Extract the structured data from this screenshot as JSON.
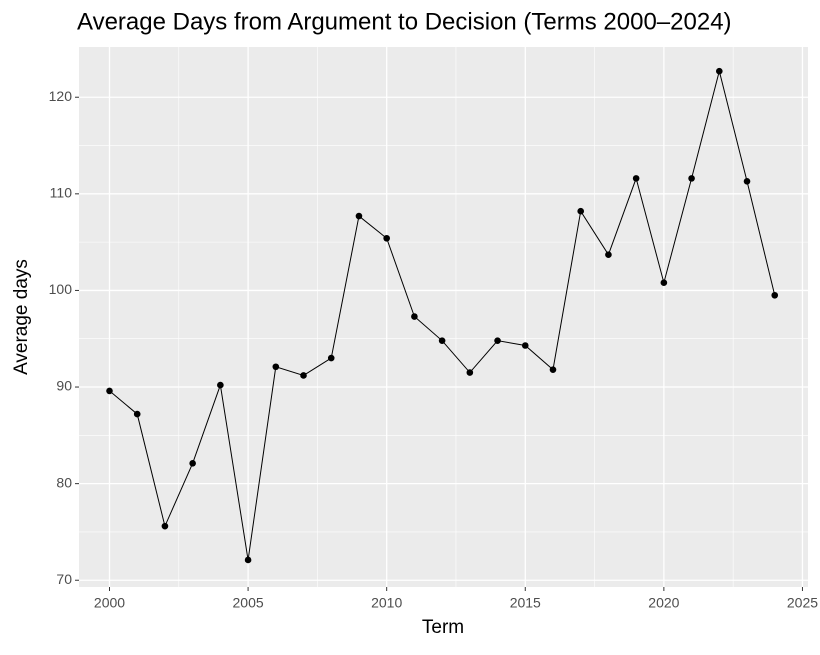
{
  "chart_data": {
    "type": "line",
    "title": "Average Days from Argument to Decision (Terms 2000–2024)",
    "x_label": "Term",
    "y_label": "Average days",
    "x": [
      2000,
      2001,
      2002,
      2003,
      2004,
      2005,
      2006,
      2007,
      2008,
      2009,
      2010,
      2011,
      2012,
      2013,
      2014,
      2015,
      2016,
      2017,
      2018,
      2019,
      2020,
      2021,
      2022,
      2023,
      2024
    ],
    "series": [
      {
        "color": "#000000",
        "values": [
          89.6,
          87.2,
          75.6,
          82.1,
          90.2,
          72.1,
          92.1,
          91.2,
          93.0,
          107.7,
          105.4,
          97.3,
          94.8,
          91.5,
          94.8,
          94.3,
          91.8,
          108.2,
          103.7,
          111.6,
          100.8,
          111.6,
          122.7,
          111.3,
          99.5
        ]
      }
    ],
    "xlim": [
      1998.9,
      2025.2
    ],
    "xticks": [
      2000,
      2005,
      2010,
      2015,
      2020,
      2025
    ],
    "ylim": [
      69.3,
      125.2
    ],
    "yticks": [
      70,
      80,
      90,
      100,
      110,
      120
    ],
    "grid": true
  }
}
